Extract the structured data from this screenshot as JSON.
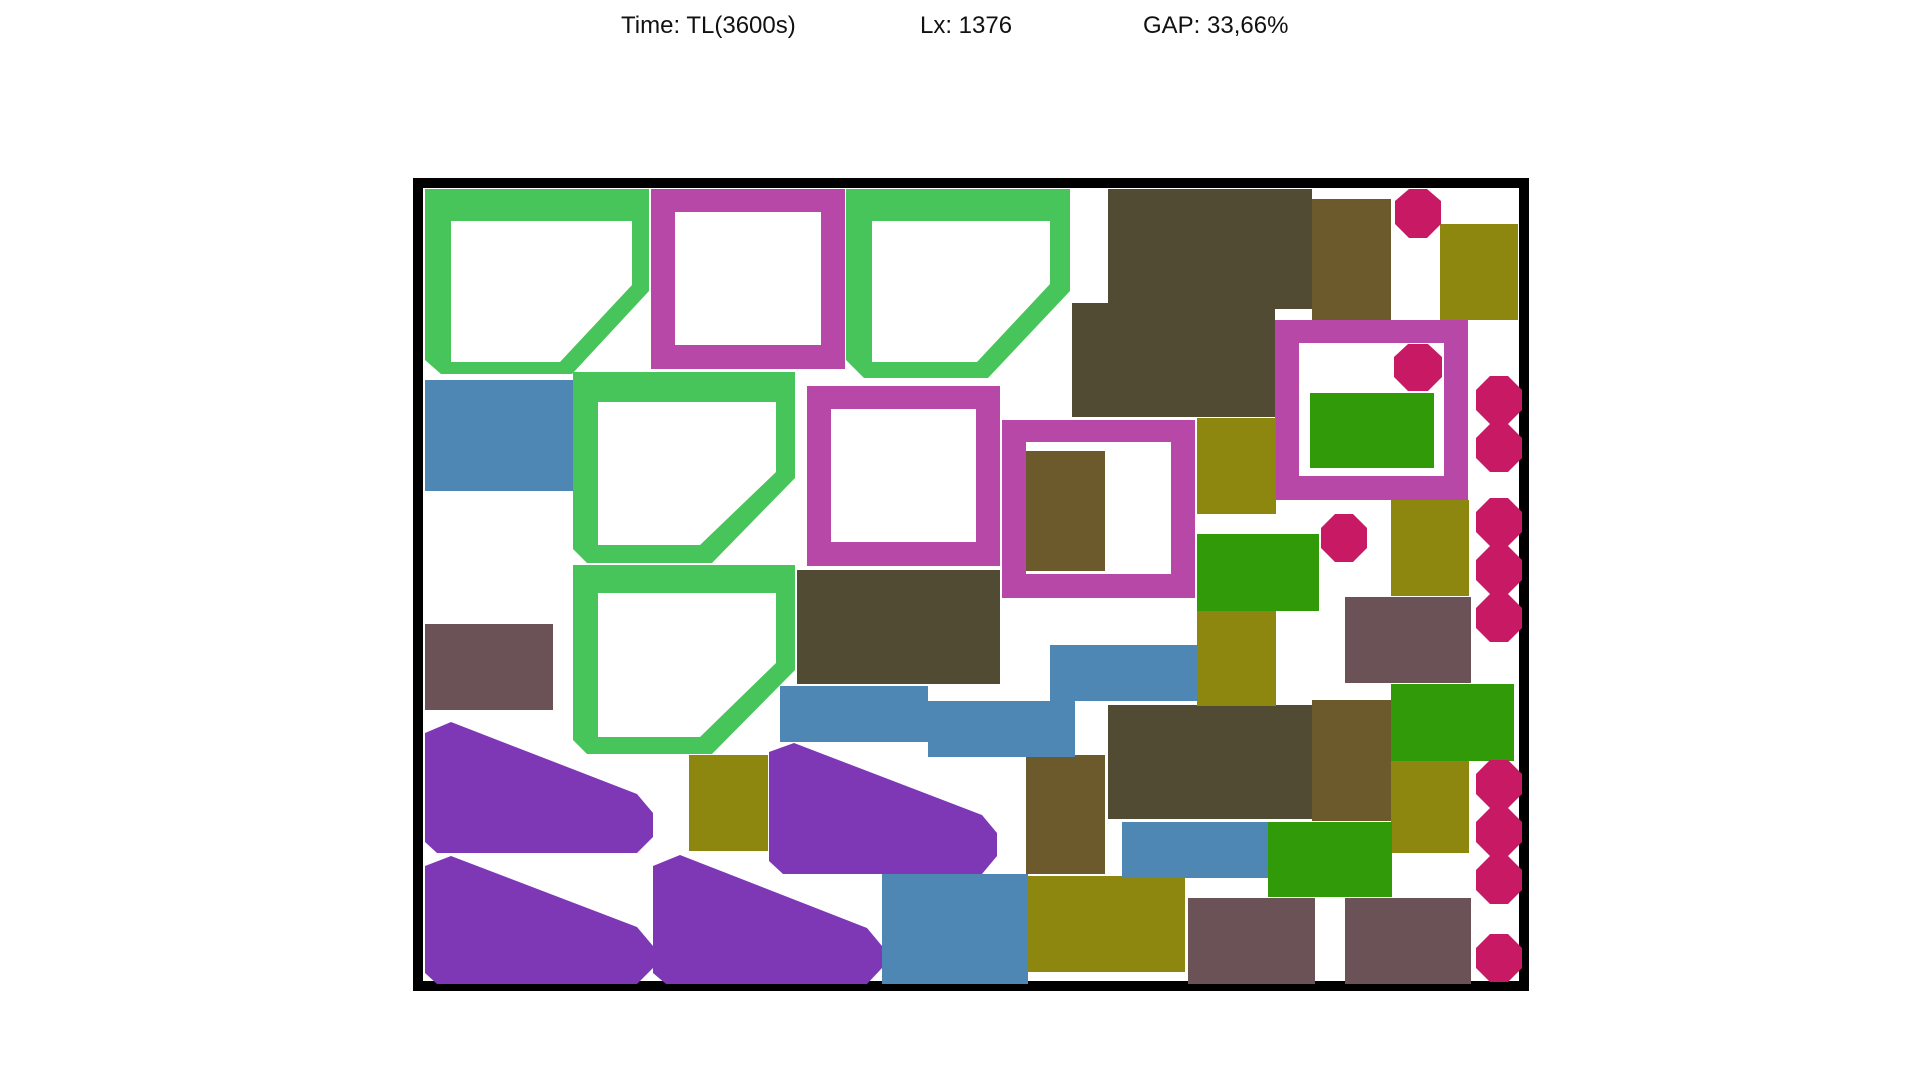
{
  "header": {
    "time": "Time: TL(3600s)",
    "lx": "Lx: 1376",
    "gap": "GAP: 33,66%"
  },
  "colors": {
    "frame": "#000000",
    "green_outline": "#47c45a",
    "magenta_outline": "#b748a8",
    "dark_olive": "#514b33",
    "brown": "#6c5a2c",
    "olive": "#8d8710",
    "crimson": "#c81a64",
    "steel_blue": "#4e87b4",
    "green": "#319a09",
    "mauve": "#6b5256",
    "purple": "#7e38b6"
  }
}
